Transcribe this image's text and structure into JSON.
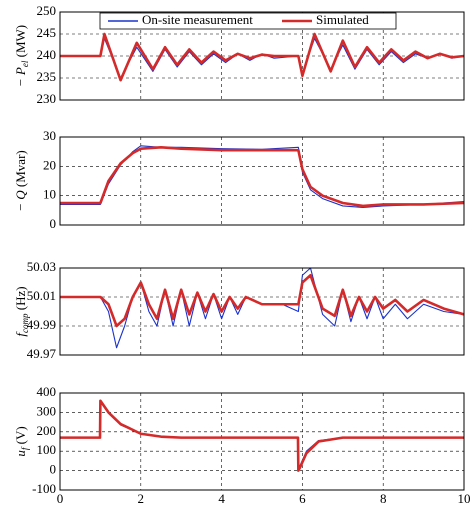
{
  "chart_data": [
    {
      "type": "line",
      "ylabel": {
        "main": "− P",
        "sub": "el",
        "unit": " (MW)"
      },
      "x": [
        0,
        1,
        1.1,
        1.5,
        1.9,
        2.3,
        2.6,
        2.9,
        3.2,
        3.5,
        3.8,
        4.1,
        4.4,
        4.7,
        5.0,
        5.3,
        5.9,
        6.0,
        6.3,
        6.7,
        7.0,
        7.3,
        7.6,
        7.9,
        8.2,
        8.5,
        8.8,
        9.1,
        9.4,
        9.7,
        10
      ],
      "series": [
        {
          "name": "On-site measurement",
          "color": "#1a33cc",
          "values": [
            240,
            240,
            244,
            235,
            242,
            236.5,
            241.5,
            237.5,
            241,
            238,
            240.5,
            238.5,
            240.5,
            239,
            240.5,
            239.5,
            240,
            236,
            244,
            237,
            242.5,
            237,
            241.5,
            238,
            241,
            238.5,
            240.5,
            239.5,
            240.5,
            239.5,
            240
          ]
        },
        {
          "name": "Simulated",
          "color": "#d42a2a",
          "values": [
            240,
            240,
            245,
            234.5,
            243,
            237,
            242,
            238,
            241.5,
            238.5,
            241,
            239,
            240.5,
            239.5,
            240.3,
            240,
            240,
            235.5,
            245,
            236.5,
            243.5,
            237.5,
            242,
            238.5,
            241.5,
            239,
            241,
            239.5,
            240.5,
            239.7,
            240
          ]
        }
      ],
      "xlim": [
        0,
        10
      ],
      "xticks": [
        0,
        2,
        4,
        6,
        8,
        10
      ],
      "ylim": [
        230,
        250
      ],
      "yticks": [
        230,
        235,
        240,
        245,
        250
      ],
      "grid": true,
      "legend": "top"
    },
    {
      "type": "line",
      "ylabel": {
        "main": "− Q",
        "sub": "",
        "unit": " (Mvar)"
      },
      "x": [
        0,
        1,
        1.2,
        1.5,
        1.8,
        2,
        2.5,
        3,
        4,
        5,
        5.9,
        6.0,
        6.2,
        6.5,
        7,
        7.5,
        8,
        9,
        10
      ],
      "series": [
        {
          "color": "#1a33cc",
          "values": [
            7,
            7,
            14,
            20.5,
            25,
            27,
            26.5,
            26.5,
            26,
            25.8,
            26.5,
            18,
            12,
            9,
            6.5,
            6,
            6.5,
            7,
            8
          ]
        },
        {
          "color": "#d42a2a",
          "values": [
            7.5,
            7.5,
            15,
            21,
            24.5,
            26,
            26.5,
            26,
            25.5,
            25.5,
            25.5,
            19,
            13,
            10,
            7.5,
            6.5,
            7,
            7,
            7.5
          ]
        }
      ],
      "xlim": [
        0,
        10
      ],
      "xticks": [
        0,
        2,
        4,
        6,
        8,
        10
      ],
      "ylim": [
        0,
        30
      ],
      "yticks": [
        0,
        10,
        20,
        30
      ],
      "grid": true
    },
    {
      "type": "line",
      "ylabel": {
        "main": "f",
        "sub": "comp",
        "unit": " (Hz)"
      },
      "x": [
        0,
        1,
        1.2,
        1.4,
        1.6,
        1.8,
        2.0,
        2.2,
        2.4,
        2.6,
        2.8,
        3.0,
        3.2,
        3.4,
        3.6,
        3.8,
        4.0,
        4.2,
        4.4,
        4.6,
        5.0,
        5.5,
        5.9,
        6.0,
        6.2,
        6.5,
        6.8,
        7.0,
        7.2,
        7.4,
        7.6,
        7.8,
        8.0,
        8.3,
        8.6,
        9.0,
        9.5,
        10
      ],
      "series": [
        {
          "color": "#1a33cc",
          "values": [
            50.01,
            50.01,
            50.0,
            49.975,
            49.99,
            50.01,
            50.02,
            50.0,
            49.99,
            50.015,
            49.99,
            50.015,
            49.99,
            50.013,
            49.995,
            50.012,
            49.995,
            50.01,
            49.998,
            50.01,
            50.005,
            50.005,
            50.0,
            50.025,
            50.03,
            49.998,
            49.99,
            50.015,
            49.993,
            50.01,
            49.995,
            50.01,
            49.995,
            50.005,
            49.995,
            50.005,
            50.0,
            49.998
          ]
        },
        {
          "color": "#d42a2a",
          "values": [
            50.01,
            50.01,
            50.005,
            49.99,
            49.995,
            50.01,
            50.02,
            50.005,
            49.995,
            50.015,
            49.995,
            50.015,
            49.998,
            50.013,
            50.0,
            50.012,
            50.0,
            50.01,
            50.002,
            50.01,
            50.005,
            50.005,
            50.005,
            50.02,
            50.025,
            50.002,
            49.997,
            50.015,
            49.997,
            50.01,
            50.0,
            50.01,
            50.002,
            50.008,
            50.0,
            50.008,
            50.002,
            49.998
          ]
        }
      ],
      "xlim": [
        0,
        10
      ],
      "xticks": [
        0,
        2,
        4,
        6,
        8,
        10
      ],
      "ylim": [
        49.97,
        50.03
      ],
      "yticks": [
        49.97,
        49.99,
        50.01,
        50.03
      ],
      "grid": true
    },
    {
      "type": "line",
      "ylabel": {
        "main": "u",
        "sub": "f",
        "unit": " (V)"
      },
      "x": [
        0,
        0.99,
        1.0,
        1.05,
        1.2,
        1.5,
        2,
        2.5,
        3,
        4,
        5,
        5.89,
        5.9,
        5.95,
        6.1,
        6.4,
        7,
        8,
        9,
        10
      ],
      "series": [
        {
          "color": "#1a33cc",
          "values": [
            170,
            170,
            350,
            340,
            295,
            235,
            190,
            175,
            170,
            170,
            170,
            170,
            10,
            30,
            100,
            155,
            170,
            170,
            170,
            170
          ]
        },
        {
          "color": "#d42a2a",
          "values": [
            170,
            170,
            360,
            345,
            300,
            240,
            190,
            175,
            170,
            170,
            170,
            170,
            0,
            20,
            90,
            150,
            170,
            170,
            170,
            170
          ]
        }
      ],
      "xlim": [
        0,
        10
      ],
      "xticks": [
        0,
        2,
        4,
        6,
        8,
        10
      ],
      "xtick_labels": true,
      "ylim": [
        -100,
        400
      ],
      "yticks": [
        -100,
        0,
        100,
        200,
        300,
        400
      ],
      "grid": true
    }
  ]
}
